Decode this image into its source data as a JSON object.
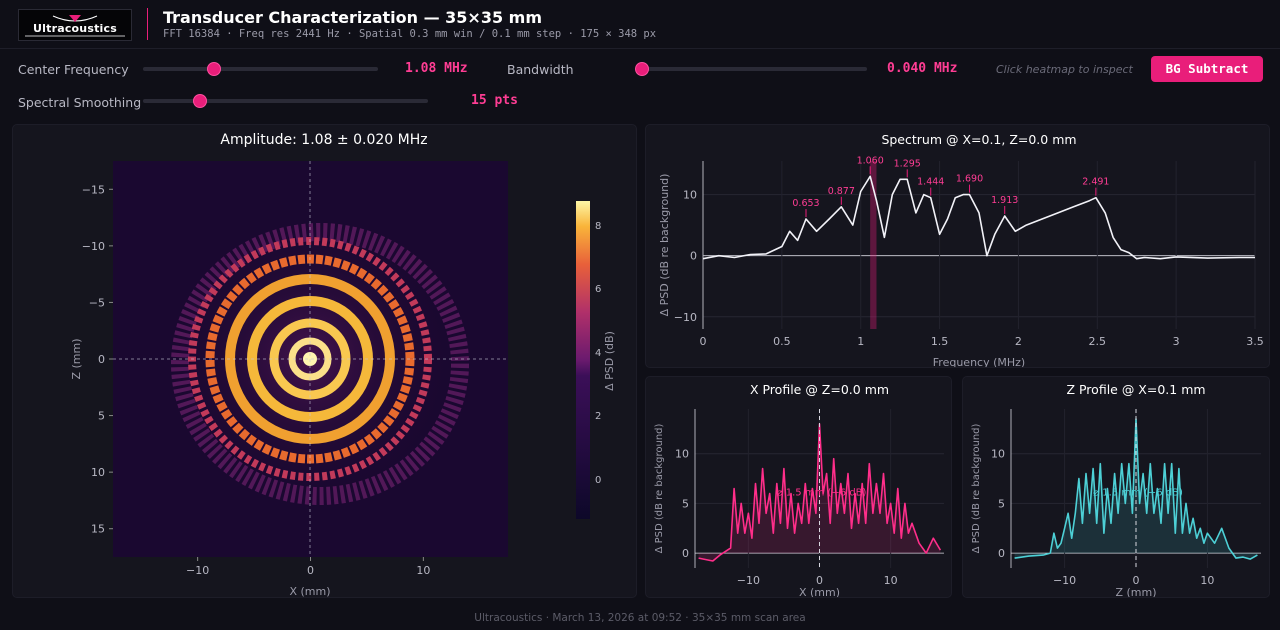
{
  "app": {
    "logo_text": "Ultracoustics",
    "title": "Transducer Characterization — 35×35 mm",
    "subtitle": "FFT 16384 · Freq res 2441 Hz · Spatial 0.3 mm win / 0.1 mm step · 175 × 348 px"
  },
  "controls": {
    "center_frequency": {
      "label": "Center Frequency",
      "value": "1.08 MHz",
      "level": 0.3
    },
    "bandwidth": {
      "label": "Bandwidth",
      "value": "0.040 MHz",
      "level": 0.03
    },
    "smoothing": {
      "label": "Spectral Smoothing",
      "value": "15 pts",
      "level": 0.2
    },
    "hint": "Click heatmap to inspect",
    "bg_subtract_label": "BG Subtract"
  },
  "colors": {
    "accent": "#e91e7a",
    "accent_text": "#ff3d94",
    "cyan": "#4dd0d6",
    "background": "#0f0f17",
    "panel": "#15151e"
  },
  "heatmap": {
    "title": "Amplitude: 1.08 ± 0.020 MHz",
    "xlabel": "X (mm)",
    "ylabel": "Z (mm)",
    "x_ticks": [
      "−10",
      "0",
      "10"
    ],
    "z_ticks": [
      "−15",
      "−10",
      "−5",
      "0",
      "5",
      "10",
      "15"
    ],
    "colorbar_label": "Δ PSD (dB)",
    "colorbar_ticks": [
      "8",
      "6",
      "4",
      "2",
      "0"
    ]
  },
  "chart_data": [
    {
      "type": "line",
      "title": "Spectrum @ X=0.1, Z=0.0 mm",
      "xlabel": "Frequency (MHz)",
      "ylabel": "Δ PSD (dB re background)",
      "xlim": [
        0,
        3.5
      ],
      "ylim": [
        -12,
        15.5
      ],
      "x_ticks": [
        "0",
        "0.5",
        "1",
        "1.5",
        "2",
        "2.5",
        "3",
        "3.5"
      ],
      "y_ticks": [
        "−10",
        "0",
        "10"
      ],
      "x": [
        0,
        0.1,
        0.2,
        0.3,
        0.4,
        0.5,
        0.55,
        0.6,
        0.653,
        0.72,
        0.8,
        0.877,
        0.95,
        1.0,
        1.06,
        1.1,
        1.15,
        1.2,
        1.25,
        1.295,
        1.35,
        1.4,
        1.444,
        1.5,
        1.55,
        1.6,
        1.65,
        1.69,
        1.75,
        1.8,
        1.85,
        1.913,
        1.98,
        2.05,
        2.15,
        2.25,
        2.35,
        2.45,
        2.491,
        2.55,
        2.6,
        2.65,
        2.7,
        2.75,
        2.8,
        2.9,
        3.0,
        3.2,
        3.4,
        3.5
      ],
      "y": [
        -0.5,
        0,
        -0.3,
        0.2,
        0.3,
        1.5,
        4,
        2.5,
        6,
        4,
        6,
        8,
        5,
        10.5,
        13,
        9,
        3,
        10,
        12.5,
        12.5,
        7,
        10,
        9.5,
        3.5,
        6,
        9.5,
        10,
        10,
        7,
        0,
        3.5,
        6.5,
        4,
        5,
        6,
        7,
        8,
        9,
        9.5,
        7,
        3,
        1,
        0.5,
        -0.5,
        -0.3,
        -0.5,
        -0.2,
        -0.4,
        -0.3,
        -0.3
      ],
      "peak_labels": [
        {
          "x": 0.653,
          "y": 6,
          "label": "0.653"
        },
        {
          "x": 0.877,
          "y": 8,
          "label": "0.877"
        },
        {
          "x": 1.06,
          "y": 13,
          "label": "1.060"
        },
        {
          "x": 1.295,
          "y": 12.5,
          "label": "1.295"
        },
        {
          "x": 1.444,
          "y": 9.5,
          "label": "1.444"
        },
        {
          "x": 1.69,
          "y": 10,
          "label": "1.690"
        },
        {
          "x": 1.913,
          "y": 6.5,
          "label": "1.913"
        },
        {
          "x": 2.491,
          "y": 9.5,
          "label": "2.491"
        }
      ],
      "band": [
        1.06,
        1.1
      ]
    },
    {
      "type": "line",
      "title": "X Profile @ Z=0.0 mm",
      "xlabel": "X (mm)",
      "ylabel": "Δ PSD (dB re background)",
      "xlim": [
        -17.5,
        17.5
      ],
      "ylim": [
        -1.5,
        14.5
      ],
      "x_ticks": [
        "−10",
        "0",
        "10"
      ],
      "y_ticks": [
        "0",
        "5",
        "10"
      ],
      "x": [
        -17,
        -15,
        -14,
        -12.5,
        -12,
        -11.5,
        -11,
        -10.5,
        -10,
        -9.5,
        -9,
        -8.5,
        -8,
        -7.5,
        -7,
        -6.5,
        -6,
        -5.5,
        -5,
        -4.5,
        -4,
        -3.5,
        -3,
        -2.5,
        -2,
        -1.5,
        -1,
        -0.5,
        0,
        0.5,
        1,
        1.5,
        2,
        2.5,
        3,
        3.5,
        4,
        4.5,
        5,
        5.5,
        6,
        6.5,
        7,
        7.5,
        8,
        8.5,
        9,
        9.5,
        10,
        10.5,
        11,
        11.5,
        12,
        12.5,
        13,
        14,
        15,
        16,
        17
      ],
      "y": [
        -0.5,
        -0.8,
        -0.2,
        0.5,
        6.5,
        2,
        5,
        2,
        4,
        1.5,
        7,
        3,
        8.5,
        4,
        6,
        2,
        7,
        3,
        8.5,
        2.5,
        6,
        2,
        5,
        3,
        7,
        3,
        6.5,
        4,
        13,
        6,
        8,
        3,
        9.5,
        4,
        7,
        4,
        8,
        2.5,
        6,
        3,
        7,
        3,
        9,
        4,
        7,
        4,
        8,
        3,
        5,
        2,
        6.5,
        1.5,
        5,
        2,
        3,
        1,
        0,
        1.5,
        0.3
      ],
      "marker_x": 0,
      "annotation": "⌀ 1.5 mm (−6 dB)"
    },
    {
      "type": "line",
      "title": "Z Profile @ X=0.1 mm",
      "xlabel": "Z (mm)",
      "ylabel": "Δ PSD (dB re background)",
      "xlim": [
        -17.5,
        17.5
      ],
      "ylim": [
        -1.5,
        14.5
      ],
      "x_ticks": [
        "−10",
        "0",
        "10"
      ],
      "y_ticks": [
        "0",
        "5",
        "10"
      ],
      "x": [
        -17,
        -15,
        -13,
        -12,
        -11.5,
        -11,
        -10.5,
        -10,
        -9.5,
        -9,
        -8.5,
        -8,
        -7.5,
        -7,
        -6.5,
        -6,
        -5.5,
        -5,
        -4.5,
        -4,
        -3.5,
        -3,
        -2.5,
        -2,
        -1.5,
        -1,
        -0.5,
        0,
        0.5,
        1,
        1.5,
        2,
        2.5,
        3,
        3.5,
        4,
        4.5,
        5,
        5.5,
        6,
        6.5,
        7,
        7.5,
        8,
        8.5,
        9,
        9.5,
        10,
        11,
        12,
        13,
        14,
        15,
        16,
        17
      ],
      "y": [
        -0.5,
        -0.3,
        -0.2,
        0,
        2,
        0.5,
        1,
        2.5,
        4,
        1.5,
        4,
        7.5,
        3,
        8,
        4,
        8.5,
        3,
        9,
        2,
        6.5,
        3,
        8,
        4,
        9,
        5,
        9,
        4,
        13.5,
        5,
        8,
        4,
        9,
        4,
        6.5,
        3,
        9,
        4,
        9,
        2,
        8.5,
        2,
        5,
        2,
        3.5,
        1.5,
        2.5,
        1,
        2,
        1,
        2.5,
        0.5,
        -0.5,
        -0.4,
        -0.6,
        -0.2
      ],
      "marker_x": 0,
      "annotation": "⌀ 1.5 mm (−6 dB)"
    }
  ],
  "footer": {
    "text": "Ultracoustics   ·   March 13, 2026 at 09:52   ·   35×35 mm scan area"
  }
}
